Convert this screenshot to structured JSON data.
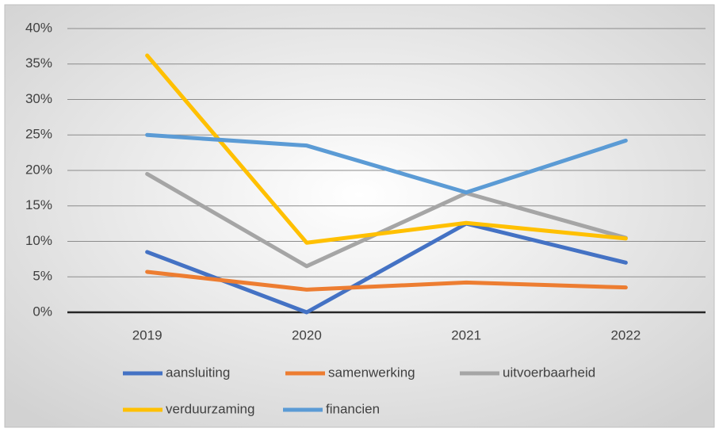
{
  "chart_data": {
    "type": "line",
    "categories": [
      "2019",
      "2020",
      "2021",
      "2022"
    ],
    "series": [
      {
        "name": "aansluiting",
        "color": "#4472c4",
        "values": [
          8.5,
          0,
          12.5,
          7
        ]
      },
      {
        "name": "samenwerking",
        "color": "#ed7d31",
        "values": [
          5.7,
          3.2,
          4.2,
          3.5
        ]
      },
      {
        "name": "uitvoerbaarheid",
        "color": "#a5a5a5",
        "values": [
          19.5,
          6.5,
          16.8,
          10.5
        ]
      },
      {
        "name": "verduurzaming",
        "color": "#ffc000",
        "values": [
          36.2,
          9.8,
          12.6,
          10.4
        ]
      },
      {
        "name": "financien",
        "color": "#5b9bd5",
        "values": [
          25,
          23.5,
          16.9,
          24.2
        ]
      }
    ],
    "ylim": [
      0,
      40
    ],
    "yticks": [
      {
        "value": 0,
        "label": "0%"
      },
      {
        "value": 5,
        "label": "5%"
      },
      {
        "value": 10,
        "label": "10%"
      },
      {
        "value": 15,
        "label": "15%"
      },
      {
        "value": 20,
        "label": "20%"
      },
      {
        "value": 25,
        "label": "25%"
      },
      {
        "value": 30,
        "label": "30%"
      },
      {
        "value": 35,
        "label": "35%"
      },
      {
        "value": 40,
        "label": "40%"
      }
    ],
    "grid": true
  }
}
